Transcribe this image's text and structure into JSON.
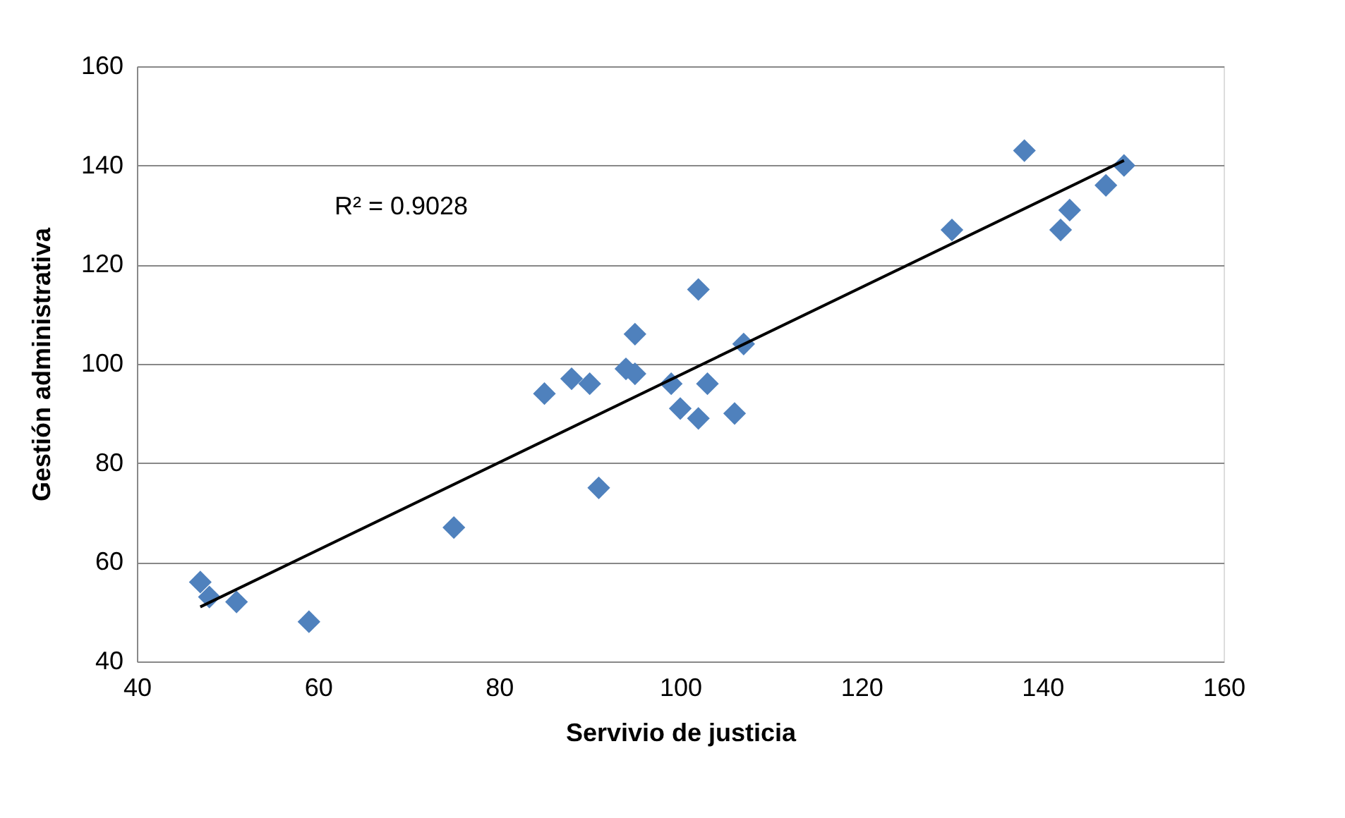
{
  "chart_data": {
    "type": "scatter",
    "xlabel": "Servivio de justicia",
    "ylabel": "Gestión administrativa",
    "series": [
      {
        "color": "#4f81bd",
        "marker": "diamond",
        "x": [
          47,
          48,
          51,
          59,
          75,
          85,
          88,
          90,
          91,
          94,
          95,
          95,
          99,
          100,
          102,
          102,
          103,
          106,
          107,
          130,
          138,
          142,
          143,
          147,
          149
        ],
        "values": [
          56,
          53,
          52,
          48,
          67,
          94,
          97,
          96,
          75,
          99,
          106,
          98,
          96,
          91,
          89,
          115,
          96,
          90,
          104,
          127,
          143,
          127,
          131,
          136,
          140
        ]
      },
      {
        "type": "line",
        "color": "#000000",
        "marker": "none",
        "x": [
          47,
          149
        ],
        "values": [
          51,
          141
        ]
      }
    ],
    "annotations": [
      "R² = 0.9028"
    ],
    "xlim": [
      40,
      160
    ],
    "xticks": [
      40,
      60,
      80,
      100,
      120,
      140,
      160
    ],
    "ylim": [
      40,
      160
    ],
    "yticks": [
      40,
      60,
      80,
      100,
      120,
      140,
      160
    ],
    "grid": "y"
  }
}
